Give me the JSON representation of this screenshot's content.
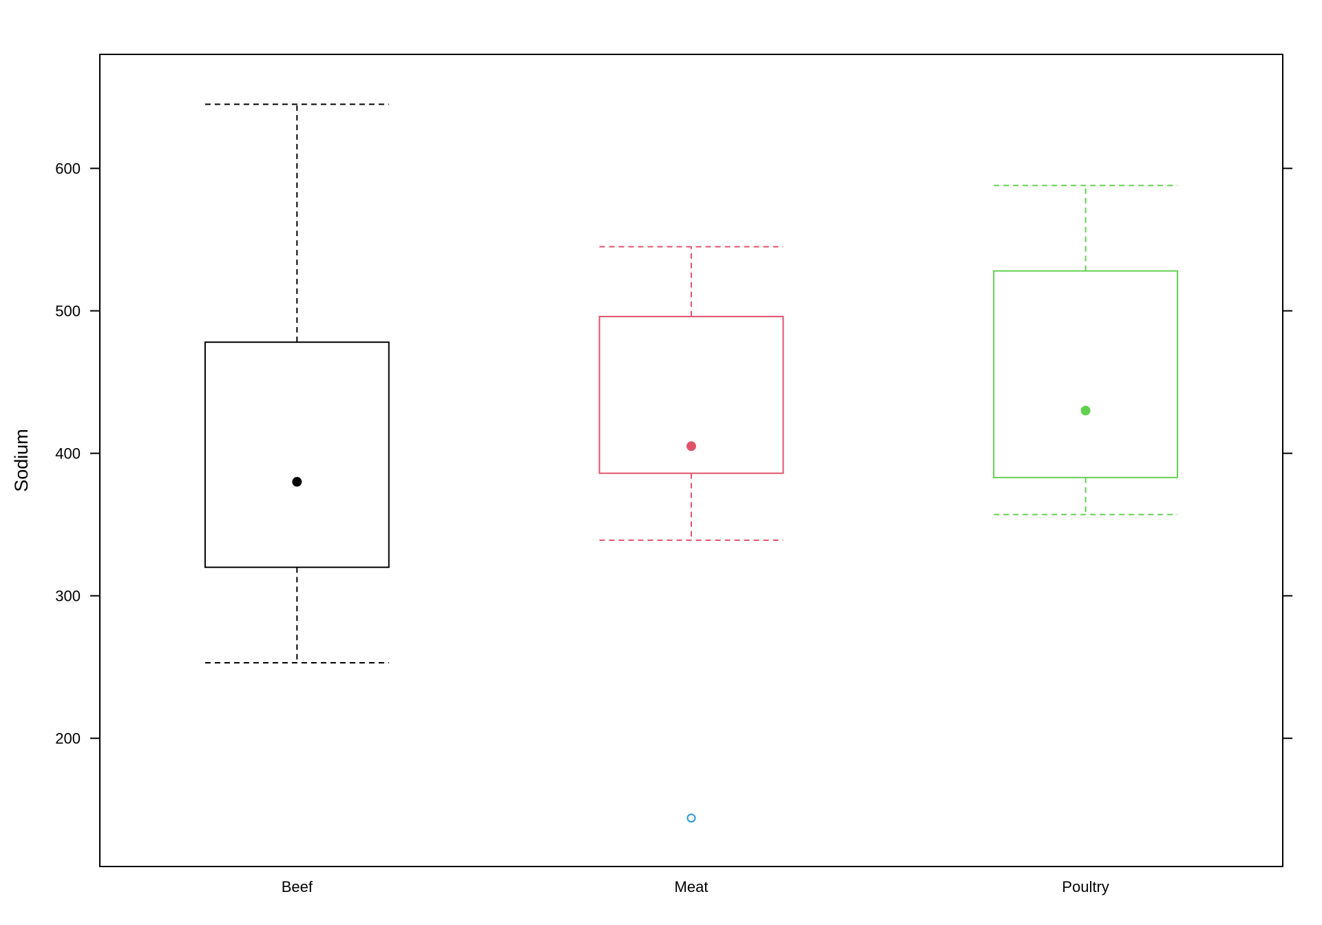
{
  "chart_data": {
    "type": "box",
    "ylabel": "Sodium",
    "xlabel": "",
    "title": "",
    "ylim": [
      110,
      680
    ],
    "yticks": [
      200,
      300,
      400,
      500,
      600
    ],
    "categories": [
      "Beef",
      "Meat",
      "Poultry"
    ],
    "boxes": [
      {
        "name": "Beef",
        "color": "#000000",
        "whisker_low": 253,
        "q1": 320,
        "median": 380,
        "q3": 478,
        "whisker_high": 645,
        "outliers": []
      },
      {
        "name": "Meat",
        "color": "#DF536B",
        "whisker_low": 339,
        "q1": 386,
        "median": 405,
        "q3": 496,
        "whisker_high": 545,
        "outliers": [
          144
        ]
      },
      {
        "name": "Poultry",
        "color": "#61D04F",
        "whisker_low": 357,
        "q1": 383,
        "median": 430,
        "q3": 528,
        "whisker_high": 588,
        "outliers": []
      }
    ],
    "outlier_color": "#2297E6",
    "grid": false,
    "legend": "none"
  }
}
